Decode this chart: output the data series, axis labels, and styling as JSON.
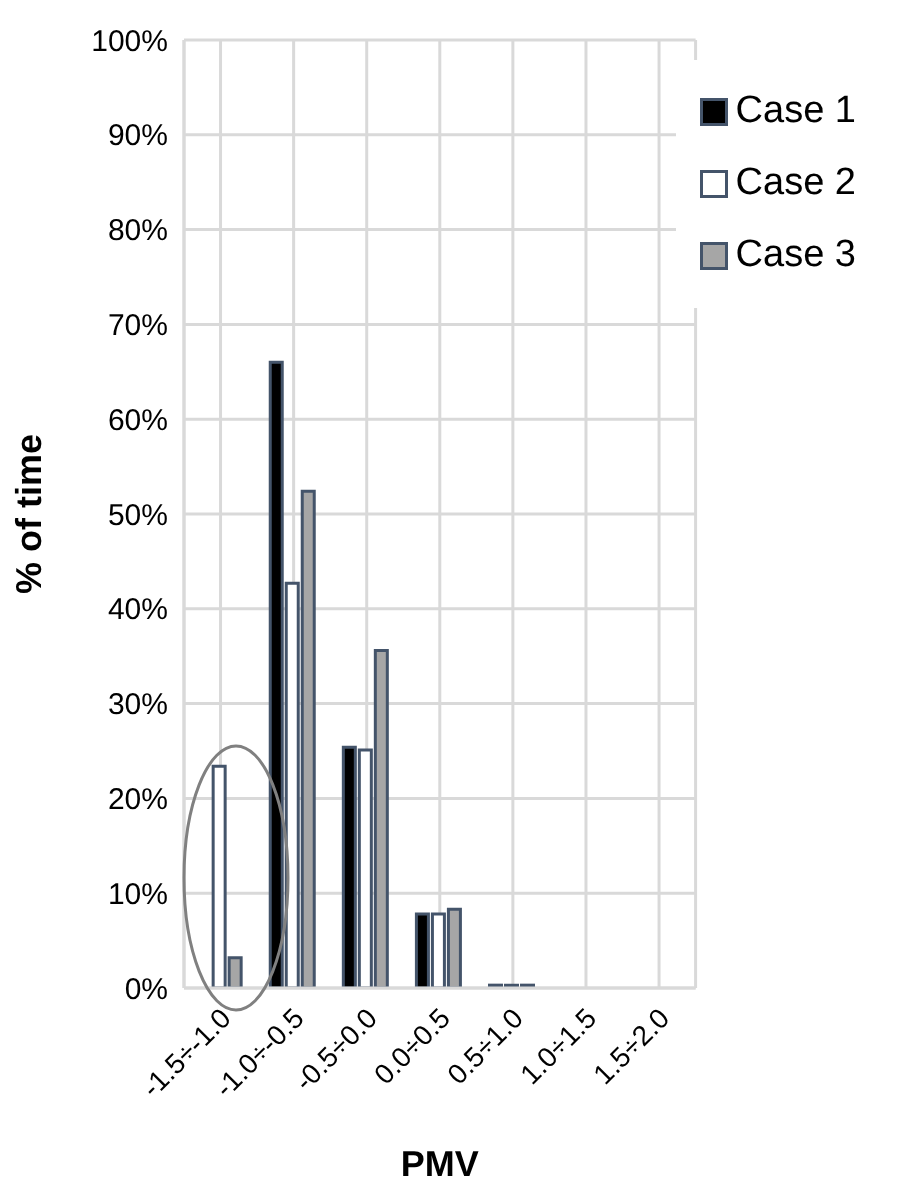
{
  "chart_data": {
    "type": "bar",
    "xlabel": "PMV",
    "ylabel": "% of time",
    "categories": [
      "-1.5÷-1.0",
      "-1.0÷-0.5",
      "-0.5÷0.0",
      "0.0÷0.5",
      "0.5÷1.0",
      "1.0÷1.5",
      "1.5÷2.0"
    ],
    "series": [
      {
        "name": "Case 1",
        "color": "#000000",
        "values": [
          0,
          66,
          25.4,
          7.8,
          0.3,
          0,
          0
        ]
      },
      {
        "name": "Case 2",
        "color": "#ffffff",
        "values": [
          23.4,
          42.7,
          25.1,
          7.8,
          0.3,
          0,
          0
        ]
      },
      {
        "name": "Case 3",
        "color": "#a6a6a6",
        "values": [
          3.2,
          52.4,
          35.6,
          8.3,
          0.3,
          0,
          0
        ]
      }
    ],
    "ylim": [
      0,
      100
    ],
    "yticks": [
      {
        "value": 0,
        "label": "0%"
      },
      {
        "value": 10,
        "label": "10%"
      },
      {
        "value": 20,
        "label": "20%"
      },
      {
        "value": 30,
        "label": "30%"
      },
      {
        "value": 40,
        "label": "40%"
      },
      {
        "value": 50,
        "label": "50%"
      },
      {
        "value": 60,
        "label": "60%"
      },
      {
        "value": 70,
        "label": "70%"
      },
      {
        "value": 80,
        "label": "80%"
      },
      {
        "value": 90,
        "label": "90%"
      },
      {
        "value": 100,
        "label": "100%"
      }
    ],
    "grid": true,
    "legend": "top right"
  }
}
